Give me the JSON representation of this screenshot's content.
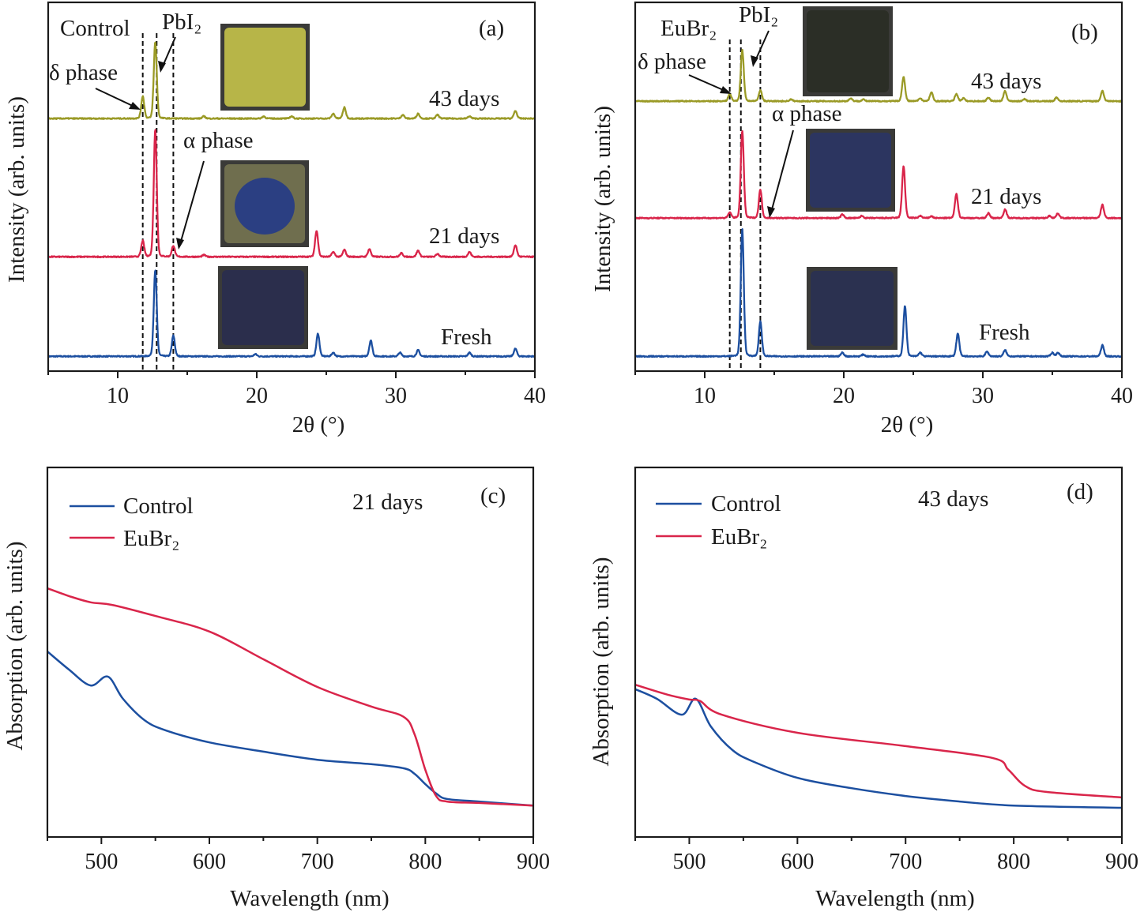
{
  "chart_data": [
    {
      "type": "line",
      "panel_label": "(a)",
      "sample": "Control",
      "xlabel": "2θ (°)",
      "ylabel": "Intensity (arb. units)",
      "xlim": [
        5,
        40
      ],
      "ylim": [
        0,
        100
      ],
      "xticks": [
        10,
        20,
        30,
        40
      ],
      "grid": false,
      "reference_lines": [
        11.8,
        12.8,
        14.0
      ],
      "annotations": {
        "pbi2": "PbI₂",
        "delta": "δ phase",
        "alpha": "α phase"
      },
      "series": [
        {
          "name": "Fresh",
          "color": "#1c4fa0",
          "offset": 4,
          "inset_color": "#2b2e4c",
          "peaks": [
            [
              12.7,
              23.3
            ],
            [
              14.0,
              5.6
            ],
            [
              19.9,
              0.6
            ],
            [
              24.4,
              6.2
            ],
            [
              25.5,
              1.0
            ],
            [
              28.2,
              4.3
            ],
            [
              30.3,
              1.0
            ],
            [
              31.6,
              1.7
            ],
            [
              35.3,
              1.0
            ],
            [
              38.6,
              2.1
            ]
          ]
        },
        {
          "name": "21 days",
          "color": "#d9254a",
          "offset": 31,
          "inset_color": "#6f6e4e",
          "peaks": [
            [
              11.8,
              4.3
            ],
            [
              12.7,
              34.5
            ],
            [
              14.0,
              3.0
            ],
            [
              16.2,
              0.5
            ],
            [
              24.3,
              7.1
            ],
            [
              25.5,
              1.3
            ],
            [
              26.3,
              1.9
            ],
            [
              28.1,
              2.1
            ],
            [
              30.4,
              1.0
            ],
            [
              31.6,
              1.7
            ],
            [
              33.0,
              0.8
            ],
            [
              35.3,
              1.3
            ],
            [
              38.6,
              3.2
            ]
          ]
        },
        {
          "name": "43 days",
          "color": "#9a9a26",
          "offset": 68.5,
          "inset_color": "#b7b548",
          "peaks": [
            [
              11.8,
              6.0
            ],
            [
              12.7,
              20.8
            ],
            [
              16.2,
              0.6
            ],
            [
              20.5,
              0.6
            ],
            [
              22.5,
              0.6
            ],
            [
              25.5,
              1.3
            ],
            [
              26.3,
              3.0
            ],
            [
              30.5,
              1.0
            ],
            [
              31.6,
              1.3
            ],
            [
              33.0,
              1.0
            ],
            [
              35.3,
              0.6
            ],
            [
              38.6,
              2.1
            ]
          ]
        }
      ]
    },
    {
      "type": "line",
      "panel_label": "(b)",
      "sample": "EuBr₂",
      "xlabel": "2θ (°)",
      "ylabel": "Intensity (arb. units)",
      "xlim": [
        5,
        40
      ],
      "ylim": [
        0,
        100
      ],
      "xticks": [
        10,
        20,
        30,
        40
      ],
      "grid": false,
      "reference_lines": [
        11.8,
        12.6,
        14.0
      ],
      "annotations": {
        "pbi2": "PbI₂",
        "delta": "δ phase",
        "alpha": "α phase"
      },
      "series": [
        {
          "name": "Fresh",
          "color": "#1c4fa0",
          "offset": 4,
          "inset_color": "#2b3150",
          "peaks": [
            [
              12.7,
              34.7
            ],
            [
              14.0,
              9.4
            ],
            [
              19.9,
              1.0
            ],
            [
              21.4,
              0.5
            ],
            [
              24.4,
              13.7
            ],
            [
              25.5,
              1.0
            ],
            [
              28.2,
              6.2
            ],
            [
              30.3,
              1.3
            ],
            [
              31.6,
              1.7
            ],
            [
              35.0,
              1.0
            ],
            [
              35.4,
              1.0
            ],
            [
              38.6,
              3.0
            ]
          ]
        },
        {
          "name": "21 days",
          "color": "#d9254a",
          "offset": 41.5,
          "inset_color": "#2c3560",
          "peaks": [
            [
              11.8,
              1.5
            ],
            [
              12.7,
              23.8
            ],
            [
              14.0,
              7.7
            ],
            [
              19.9,
              1.0
            ],
            [
              21.3,
              0.6
            ],
            [
              24.3,
              14.1
            ],
            [
              25.5,
              0.6
            ],
            [
              26.3,
              0.5
            ],
            [
              28.1,
              6.6
            ],
            [
              30.4,
              1.3
            ],
            [
              31.6,
              2.4
            ],
            [
              34.8,
              0.6
            ],
            [
              35.4,
              1.3
            ],
            [
              38.6,
              3.6
            ]
          ]
        },
        {
          "name": "43 days",
          "color": "#9a9a26",
          "offset": 73.2,
          "inset_color": "#2b2e26",
          "peaks": [
            [
              11.8,
              2.0
            ],
            [
              12.7,
              13.9
            ],
            [
              14.0,
              3.0
            ],
            [
              16.2,
              0.5
            ],
            [
              20.5,
              0.8
            ],
            [
              21.4,
              0.5
            ],
            [
              24.3,
              6.6
            ],
            [
              25.5,
              0.8
            ],
            [
              26.3,
              2.4
            ],
            [
              28.1,
              2.0
            ],
            [
              28.6,
              0.8
            ],
            [
              30.4,
              1.0
            ],
            [
              31.6,
              2.8
            ],
            [
              33.0,
              0.6
            ],
            [
              35.3,
              1.0
            ],
            [
              38.6,
              2.8
            ]
          ]
        }
      ]
    },
    {
      "type": "line",
      "panel_label": "(c)",
      "note": "21 days",
      "xlabel": "Wavelength (nm)",
      "ylabel": "Absorption (arb. units)",
      "xlim": [
        450,
        900
      ],
      "ylim": [
        0,
        1
      ],
      "xticks": [
        500,
        600,
        700,
        800,
        900
      ],
      "grid": false,
      "legend": "top-left",
      "series": [
        {
          "name": "Control",
          "color": "#1c4fa0",
          "x": [
            450,
            470,
            490,
            506,
            520,
            540,
            560,
            600,
            650,
            700,
            750,
            780,
            790,
            800,
            810,
            820,
            850,
            900
          ],
          "y": [
            0.502,
            0.453,
            0.41,
            0.434,
            0.374,
            0.316,
            0.288,
            0.256,
            0.231,
            0.209,
            0.197,
            0.186,
            0.171,
            0.143,
            0.118,
            0.103,
            0.096,
            0.085
          ]
        },
        {
          "name": "EuBr₂",
          "color": "#d9254a",
          "x": [
            450,
            470,
            490,
            510,
            550,
            600,
            650,
            700,
            750,
            780,
            790,
            800,
            810,
            820,
            850,
            900
          ],
          "y": [
            0.673,
            0.652,
            0.635,
            0.628,
            0.598,
            0.556,
            0.481,
            0.406,
            0.353,
            0.325,
            0.278,
            0.182,
            0.111,
            0.096,
            0.092,
            0.085
          ]
        }
      ]
    },
    {
      "type": "line",
      "panel_label": "(d)",
      "note": "43 days",
      "xlabel": "Wavelength (nm)",
      "ylabel": "Absorption (arb. units)",
      "xlim": [
        450,
        900
      ],
      "ylim": [
        0,
        1
      ],
      "xticks": [
        500,
        600,
        700,
        800,
        900
      ],
      "grid": false,
      "legend": "top-left",
      "series": [
        {
          "name": "Control",
          "color": "#1c4fa0",
          "x": [
            450,
            470,
            493,
            506,
            520,
            540,
            560,
            600,
            650,
            700,
            750,
            800,
            900
          ],
          "y": [
            0.4,
            0.374,
            0.331,
            0.374,
            0.299,
            0.235,
            0.203,
            0.16,
            0.132,
            0.111,
            0.096,
            0.085,
            0.079
          ]
        },
        {
          "name": "EuBr₂",
          "color": "#d9254a",
          "x": [
            450,
            480,
            500,
            510,
            530,
            600,
            700,
            780,
            795,
            810,
            830,
            900
          ],
          "y": [
            0.412,
            0.385,
            0.372,
            0.368,
            0.331,
            0.282,
            0.246,
            0.214,
            0.182,
            0.139,
            0.122,
            0.107
          ]
        }
      ]
    }
  ]
}
